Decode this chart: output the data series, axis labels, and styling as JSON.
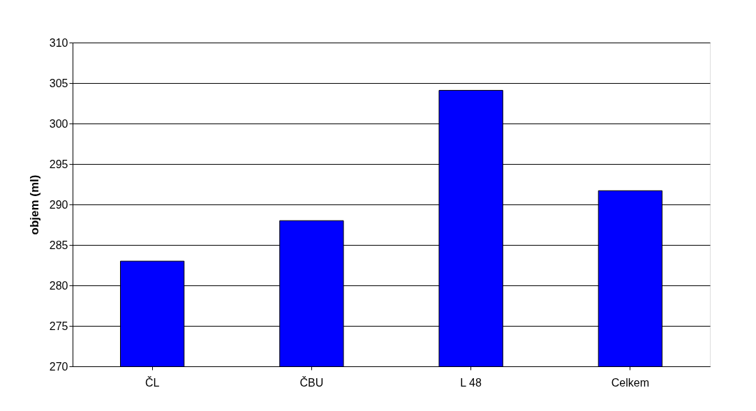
{
  "chart_data": {
    "type": "bar",
    "ylabel": "objem (ml)",
    "categories": [
      "ČL",
      "ČBU",
      "L 48",
      "Celkem"
    ],
    "values": [
      283,
      288,
      304.1,
      291.7
    ],
    "color": "#0000ff",
    "ylim": [
      270,
      310
    ],
    "yticks": [
      270,
      275,
      280,
      285,
      290,
      295,
      300,
      305,
      310
    ],
    "grid": "y"
  }
}
